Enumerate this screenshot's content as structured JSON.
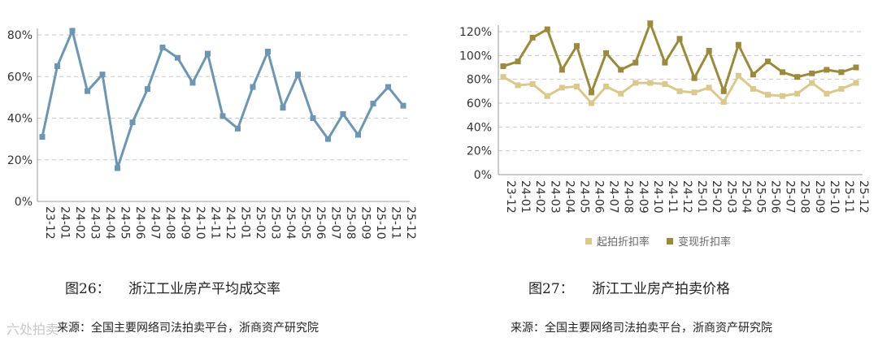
{
  "chart_data": [
    {
      "type": "line",
      "x": [
        "23-12",
        "24-01",
        "24-02",
        "24-03",
        "24-04",
        "24-05",
        "24-06",
        "24-07",
        "24-08",
        "24-09",
        "24-10",
        "24-11",
        "24-12",
        "25-01",
        "25-02",
        "25-03",
        "25-04",
        "25-05",
        "25-06",
        "25-07",
        "25-08",
        "25-09",
        "25-10",
        "25-11",
        "25-12"
      ],
      "series": [
        {
          "values": [
            31,
            65,
            82,
            53,
            61,
            16,
            38,
            54,
            74,
            69,
            57,
            71,
            41,
            35,
            55,
            72,
            45,
            61,
            40,
            30,
            42,
            32,
            47,
            55,
            46
          ]
        }
      ],
      "ylim": [
        0,
        80
      ],
      "yticks": [
        "0%",
        "20%",
        "40%",
        "60%",
        "80%"
      ],
      "grid": true,
      "color": "#6b96b4"
    },
    {
      "type": "line",
      "x": [
        "23-12",
        "24-01",
        "24-02",
        "24-03",
        "24-04",
        "24-05",
        "24-06",
        "24-07",
        "24-08",
        "24-09",
        "24-10",
        "24-11",
        "24-12",
        "25-01",
        "25-02",
        "25-03",
        "25-04",
        "25-05",
        "25-06",
        "25-07",
        "25-08",
        "25-09",
        "25-10",
        "25-11",
        "25-12"
      ],
      "series": [
        {
          "name": "起拍折扣率",
          "color": "#d9c98c",
          "values": [
            82,
            75,
            76,
            66,
            73,
            74,
            60,
            74,
            68,
            77,
            77,
            76,
            70,
            69,
            73,
            61,
            83,
            72,
            67,
            66,
            68,
            77,
            68,
            72,
            77
          ]
        },
        {
          "name": "变现折扣率",
          "color": "#9c8a3c",
          "values": [
            91,
            95,
            115,
            122,
            88,
            108,
            69,
            102,
            88,
            94,
            127,
            94,
            114,
            81,
            104,
            70,
            109,
            84,
            95,
            86,
            82,
            85,
            88,
            86,
            90
          ]
        }
      ],
      "ylim": [
        0,
        120
      ],
      "yticks": [
        "0%",
        "20%",
        "40%",
        "60%",
        "80%",
        "100%",
        "120%"
      ],
      "grid": true,
      "legend": "bottom"
    }
  ],
  "captions": {
    "left_number": "图26：",
    "left_title": "浙江工业房产平均成交率",
    "right_number": "图27：",
    "right_title": "浙江工业房产拍卖价格"
  },
  "sources": {
    "left": "来源：全国主要网络司法拍卖平台，浙商资产研究院",
    "right": "来源：全国主要网络司法拍卖平台，浙商资产研究院"
  },
  "watermark": "六处拍卖"
}
